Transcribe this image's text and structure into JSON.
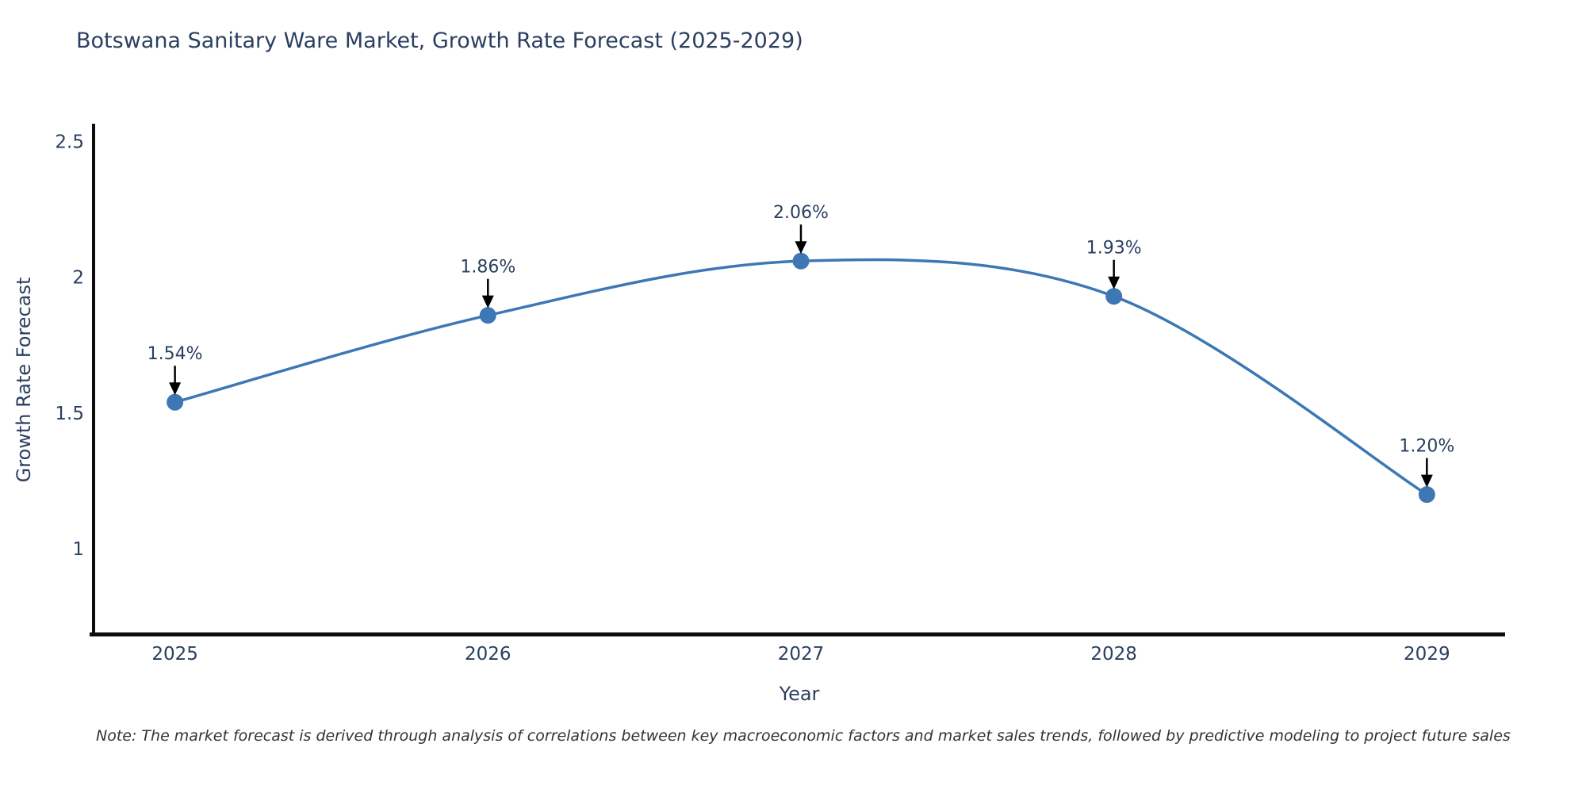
{
  "title": "Botswana Sanitary Ware Market, Growth Rate Forecast (2025-2029)",
  "note": "Note: The market forecast is derived through analysis of correlations between key macroeconomic factors and market sales trends, followed by predictive modeling to project future sales",
  "chart_data": {
    "type": "line",
    "title": "Botswana Sanitary Ware Market, Growth Rate Forecast (2025-2029)",
    "xlabel": "Year",
    "ylabel": "Growth Rate Forecast",
    "categories": [
      "2025",
      "2026",
      "2027",
      "2028",
      "2029"
    ],
    "x": [
      2025,
      2026,
      2027,
      2028,
      2029
    ],
    "values": [
      1.54,
      1.86,
      2.06,
      1.93,
      1.2
    ],
    "point_labels": [
      "1.54%",
      "1.86%",
      "2.06%",
      "1.93%",
      "1.20%"
    ],
    "line_shape": "spline",
    "grid": false,
    "legend_position": "none",
    "xlim": [
      2024.74,
      2029.25
    ],
    "ylim": [
      0.685,
      2.56
    ],
    "yticks": [
      1,
      1.5,
      2,
      2.5
    ],
    "ytick_labels": [
      "1",
      "1.5",
      "2",
      "2.5"
    ],
    "colors": {
      "line": "#3d78b4",
      "marker": "#3d78b4",
      "annotation_arrow": "#000000",
      "text": "#2a3f5f",
      "axis_line": "#0d0d0d",
      "background": "#ffffff"
    }
  }
}
